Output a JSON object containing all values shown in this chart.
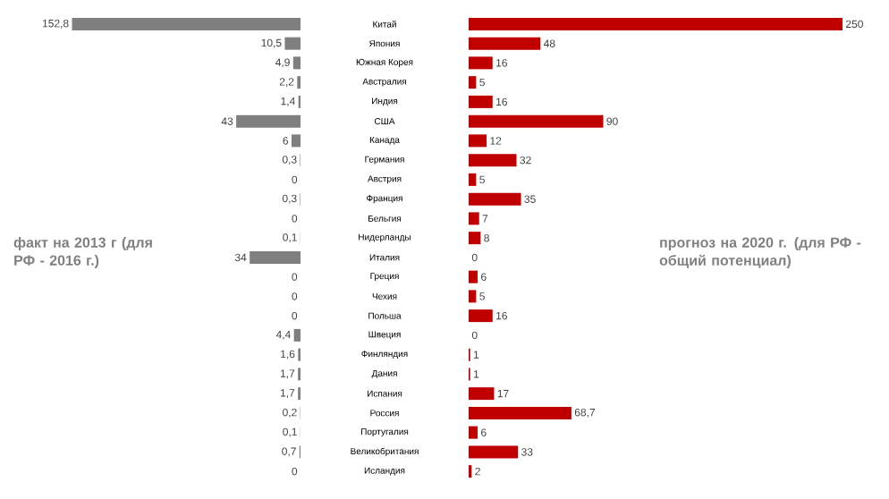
{
  "chart_data": [
    {
      "type": "bar",
      "orientation": "horizontal",
      "tick_labels": "y",
      "categories": [
        "Китай",
        "Япония",
        "Южная Корея",
        "Австралия",
        "Индия",
        "США",
        "Канада",
        "Германия",
        "Австрия",
        "Франция",
        "Бельгия",
        "Нидерланды",
        "Италия",
        "Греция",
        "Чехия",
        "Польша",
        "Швеция",
        "Финляндия",
        "Дания",
        "Испания",
        "Россия",
        "Португалия",
        "Великобритания",
        "Исландия"
      ],
      "series": [
        {
          "color": "#7f7f7f",
          "values": [
            152.8,
            10.5,
            4.9,
            2.2,
            1.4,
            43,
            6,
            0.3,
            0,
            0.3,
            0,
            0.1,
            34,
            0,
            0,
            0,
            4.4,
            1.6,
            1.7,
            1.7,
            0.2,
            0.1,
            0.7,
            0
          ],
          "value_labels": [
            "152,8",
            "10,5",
            "4,9",
            "2,2",
            "1,4",
            "43",
            "6",
            "0,3",
            "0",
            "0,3",
            "0",
            "0,1",
            "34",
            "0",
            "0",
            "0",
            "4,4",
            "1,6",
            "1,7",
            "1,7",
            "0,2",
            "0,1",
            "0,7",
            "0"
          ]
        }
      ],
      "annotations": [
        "факт на 2013 г (для РФ - 2016 г.)"
      ]
    },
    {
      "type": "bar",
      "orientation": "horizontal",
      "tick_labels": false,
      "categories": [
        null,
        null,
        null,
        null,
        null,
        null,
        null,
        null,
        null,
        null,
        null,
        null,
        null,
        null,
        null,
        null,
        null,
        null,
        null,
        null,
        null,
        null,
        null,
        null
      ],
      "series": [
        {
          "color": "#c00000",
          "values": [
            250,
            48,
            16,
            5,
            16,
            90,
            12,
            32,
            5,
            35,
            7,
            8,
            0,
            6,
            5,
            16,
            0,
            1,
            1,
            17,
            68.7,
            6,
            33,
            2
          ],
          "value_labels": [
            "250",
            "48",
            "16",
            "5",
            "16",
            "90",
            "12",
            "32",
            "5",
            "35",
            "7",
            "8",
            "0",
            "6",
            "5",
            "16",
            "0",
            "1",
            "1",
            "17",
            "68,7",
            "6",
            "33",
            "2"
          ]
        }
      ],
      "annotations": [
        "прогноз на 2020 г. (для РФ - общий потенциал)"
      ]
    }
  ]
}
